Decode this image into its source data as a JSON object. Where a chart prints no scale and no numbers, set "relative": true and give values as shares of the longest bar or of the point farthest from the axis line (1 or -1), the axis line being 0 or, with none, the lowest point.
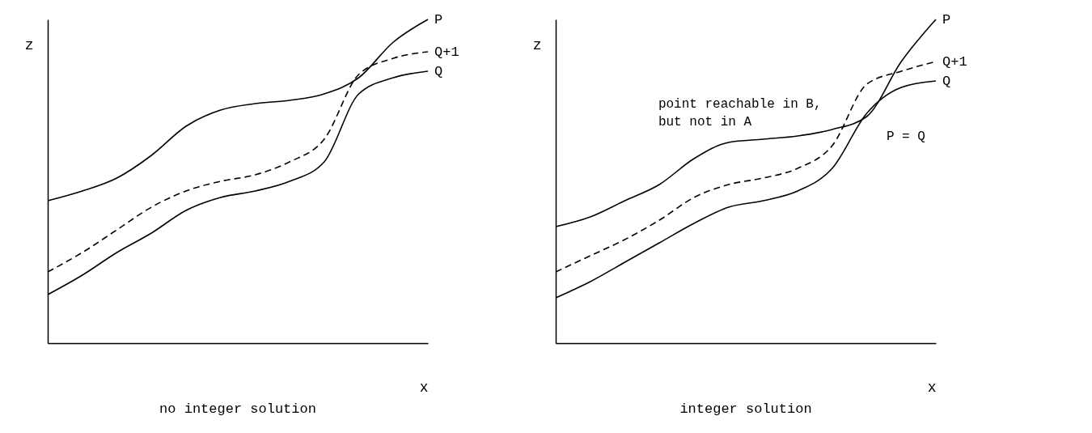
{
  "chart_data": [
    {
      "type": "line",
      "title": "no integer solution",
      "xlabel": "x",
      "ylabel": "z",
      "relative": true,
      "marker": "none",
      "categories": [
        null,
        null,
        null,
        null,
        null,
        null,
        null,
        null,
        null,
        null,
        null,
        null
      ],
      "series": [
        {
          "name": "P",
          "color": "#000000",
          "line_style": "solid",
          "values": [
            0.44,
            0.47,
            0.51,
            0.58,
            0.67,
            0.72,
            0.74,
            0.75,
            0.77,
            0.82,
            0.93,
            1
          ]
        },
        {
          "name": "Q+1",
          "color": "#000000",
          "line_style": "dashed",
          "values": [
            0.22,
            0.28,
            0.35,
            0.42,
            0.47,
            0.5,
            0.52,
            0.56,
            0.63,
            0.83,
            0.88,
            0.9
          ]
        },
        {
          "name": "Q",
          "color": "#000000",
          "line_style": "solid",
          "values": [
            0.15,
            0.21,
            0.28,
            0.34,
            0.41,
            0.45,
            0.47,
            0.5,
            0.56,
            0.77,
            0.82,
            0.84
          ]
        }
      ]
    },
    {
      "type": "line",
      "title": "integer solution",
      "xlabel": "x",
      "ylabel": "z",
      "relative": true,
      "marker": "none",
      "categories": [
        null,
        null,
        null,
        null,
        null,
        null,
        null,
        null,
        null,
        null,
        null,
        null
      ],
      "series": [
        {
          "name": "P",
          "color": "#000000",
          "line_style": "solid",
          "values": [
            0.36,
            0.39,
            0.44,
            0.49,
            0.57,
            0.62,
            0.63,
            0.64,
            0.66,
            0.7,
            0.87,
            1
          ]
        },
        {
          "name": "Q+1",
          "color": "#000000",
          "line_style": "dashed",
          "values": [
            0.22,
            0.27,
            0.32,
            0.38,
            0.45,
            0.49,
            0.51,
            0.54,
            0.61,
            0.8,
            0.84,
            0.87
          ]
        },
        {
          "name": "Q",
          "color": "#000000",
          "line_style": "solid",
          "values": [
            0.14,
            0.19,
            0.25,
            0.31,
            0.37,
            0.42,
            0.44,
            0.47,
            0.54,
            0.71,
            0.79,
            0.81
          ]
        }
      ],
      "annotations": [
        "point reachable in B,\nbut not in A",
        "P = Q"
      ]
    }
  ]
}
